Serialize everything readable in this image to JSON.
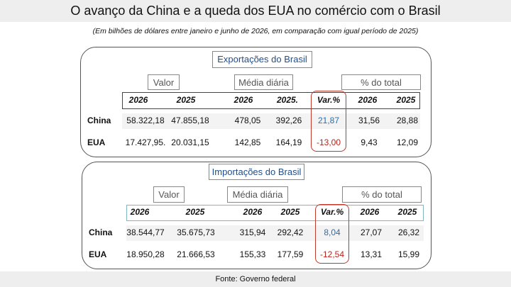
{
  "title": "O avanço da China e a queda dos EUA no comércio com o Brasil",
  "subtitle": "(Em bilhões de dólares entre janeiro e junho de 2026, em comparação com igual período de 2025)",
  "exports": {
    "title": "Exportações do Brasil",
    "groups": [
      "Valor",
      "Média diária",
      "% do total"
    ],
    "columns": [
      "2026",
      "2025",
      "2026",
      "2025.",
      "Var.%",
      "2026",
      "2025"
    ],
    "rows": [
      {
        "label": "China",
        "values": [
          "58.322,18",
          "47.855,18",
          "478,05",
          "392,26",
          "21,87",
          "31,56",
          "28,88"
        ]
      },
      {
        "label": "EUA",
        "values": [
          "17.427,95.",
          "20.031,15",
          "142,85",
          "164,19",
          "-13,00",
          "9,43",
          "12,09"
        ]
      }
    ]
  },
  "imports": {
    "title": "Importações do Brasil",
    "groups": [
      "Valor",
      "Média diária",
      "% do total"
    ],
    "columns": [
      "2026",
      "2025",
      "2026",
      "2025",
      "Var.%",
      "2026",
      "2025"
    ],
    "rows": [
      {
        "label": "China",
        "values": [
          "38.544,77",
          "35.675,73",
          "315,94",
          "292,42",
          "8,04",
          "27,07",
          "26,32"
        ]
      },
      {
        "label": "EUA",
        "values": [
          "18.950,28",
          "21.666,53",
          "155,33",
          "177,59",
          "-12,54",
          "13,31",
          "15,99"
        ]
      }
    ]
  },
  "source": "Fonte: Governo federal"
}
